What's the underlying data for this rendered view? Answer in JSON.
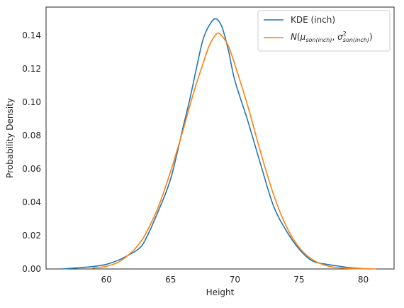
{
  "chart_data": {
    "type": "line",
    "title": "",
    "xlabel": "Height",
    "ylabel": "Probability Density",
    "xlim": [
      55.3,
      82.4
    ],
    "ylim": [
      0.0,
      0.157
    ],
    "grid": false,
    "legend_position": "top-right",
    "x_ticks": [
      {
        "value": 60,
        "label": "60"
      },
      {
        "value": 65,
        "label": "65"
      },
      {
        "value": 70,
        "label": "70"
      },
      {
        "value": 75,
        "label": "75"
      },
      {
        "value": 80,
        "label": "80"
      }
    ],
    "y_ticks": [
      {
        "value": 0.0,
        "label": "0.00"
      },
      {
        "value": 0.02,
        "label": "0.02"
      },
      {
        "value": 0.04,
        "label": "0.04"
      },
      {
        "value": 0.06,
        "label": "0.06"
      },
      {
        "value": 0.08,
        "label": "0.08"
      },
      {
        "value": 0.1,
        "label": "0.10"
      },
      {
        "value": 0.12,
        "label": "0.12"
      },
      {
        "value": 0.14,
        "label": "0.14"
      }
    ],
    "series": [
      {
        "name": "KDE (inch)",
        "color": "#1f77b4",
        "x": [
          56.5,
          58,
          59,
          60,
          61,
          62,
          62.5,
          63,
          64,
          65,
          66,
          66.5,
          67,
          67.5,
          68,
          68.5,
          69,
          69.5,
          70,
          71,
          72,
          73,
          74,
          75,
          76,
          77,
          78,
          79,
          80
        ],
        "y": [
          0.0,
          0.0008,
          0.0015,
          0.0028,
          0.0055,
          0.0095,
          0.012,
          0.017,
          0.034,
          0.054,
          0.086,
          0.102,
          0.12,
          0.137,
          0.146,
          0.15,
          0.145,
          0.131,
          0.113,
          0.089,
          0.063,
          0.038,
          0.023,
          0.012,
          0.005,
          0.003,
          0.0018,
          0.0007,
          0.0002
        ]
      },
      {
        "name": "N(μson(inch), σ²son(inch))",
        "color": "#ff7f0e",
        "x": [
          58.9,
          60,
          61,
          62,
          62.5,
          63,
          64,
          65,
          66,
          66.5,
          67,
          67.5,
          68,
          68.6,
          69,
          69.5,
          70,
          71,
          72,
          73,
          74,
          75,
          76,
          77,
          78,
          79,
          80,
          81
        ],
        "y": [
          0.0005,
          0.0016,
          0.0044,
          0.0103,
          0.0147,
          0.0203,
          0.0364,
          0.0585,
          0.0841,
          0.0979,
          0.111,
          0.1226,
          0.1337,
          0.1411,
          0.1397,
          0.1336,
          0.1226,
          0.0979,
          0.0702,
          0.0449,
          0.0257,
          0.013,
          0.0058,
          0.0023,
          0.0008,
          0.0002,
          0.0001,
          0.0
        ]
      }
    ],
    "legend": {
      "kde": "KDE (inch)",
      "normal": {
        "N": "N",
        "mu": "μ",
        "mu_sub": "son(inch)",
        "sep": ", ",
        "sigma": "σ",
        "sigma_sup": "2",
        "sigma_sub": "son(inch)",
        "open": "(",
        "close": ")"
      }
    }
  }
}
